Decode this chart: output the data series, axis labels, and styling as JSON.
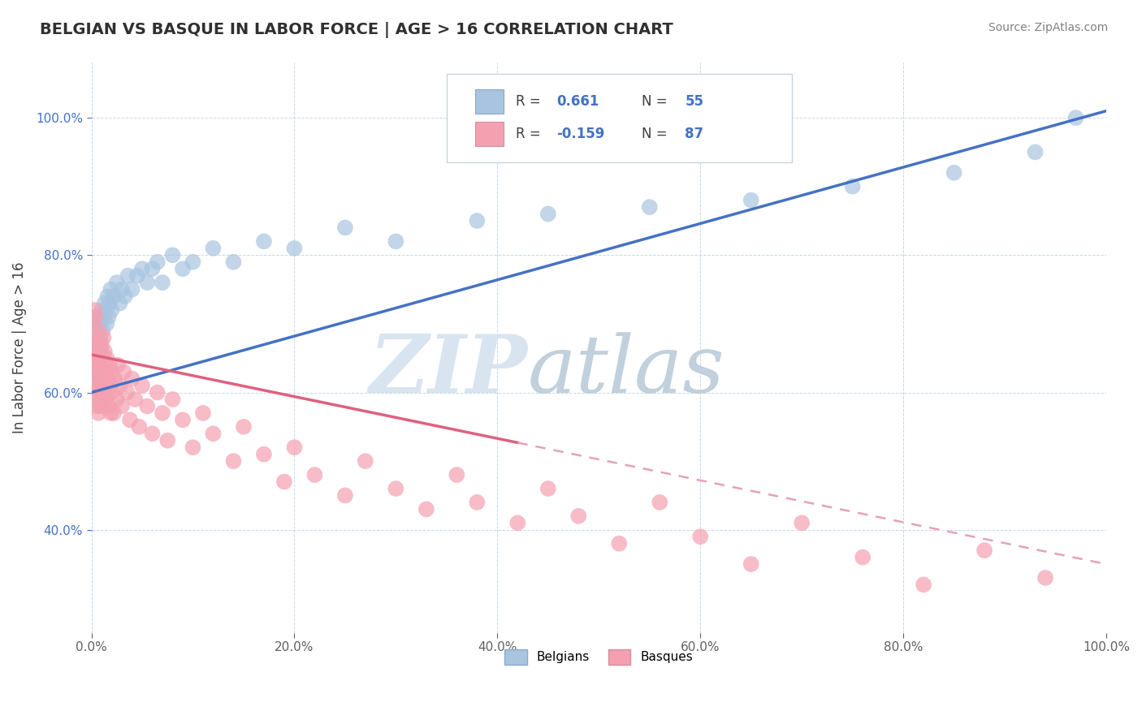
{
  "title": "BELGIAN VS BASQUE IN LABOR FORCE | AGE > 16 CORRELATION CHART",
  "source_text": "Source: ZipAtlas.com",
  "ylabel": "In Labor Force | Age > 16",
  "xlim": [
    0.0,
    1.0
  ],
  "ylim": [
    0.25,
    1.08
  ],
  "x_ticks": [
    0.0,
    0.2,
    0.4,
    0.6,
    0.8,
    1.0
  ],
  "x_tick_labels": [
    "0.0%",
    "20.0%",
    "40.0%",
    "60.0%",
    "80.0%",
    "100.0%"
  ],
  "y_ticks": [
    0.4,
    0.6,
    0.8,
    1.0
  ],
  "y_tick_labels": [
    "40.0%",
    "60.0%",
    "80.0%",
    "100.0%"
  ],
  "belgian_color": "#a8c4e0",
  "basque_color": "#f4a0b0",
  "trendline_belgian_color": "#4472c4",
  "trendline_basque_color": "#e06080",
  "trendline_basque_dashed_color": "#e8a0b8",
  "legend_label_belgians": "Belgians",
  "legend_label_basques": "Basques",
  "belgian_scatter_x": [
    0.001,
    0.002,
    0.003,
    0.004,
    0.004,
    0.005,
    0.005,
    0.006,
    0.006,
    0.007,
    0.007,
    0.008,
    0.009,
    0.01,
    0.01,
    0.011,
    0.012,
    0.013,
    0.014,
    0.015,
    0.016,
    0.017,
    0.018,
    0.019,
    0.02,
    0.022,
    0.025,
    0.028,
    0.03,
    0.033,
    0.036,
    0.04,
    0.045,
    0.05,
    0.055,
    0.06,
    0.065,
    0.07,
    0.08,
    0.09,
    0.1,
    0.12,
    0.14,
    0.17,
    0.2,
    0.25,
    0.3,
    0.38,
    0.45,
    0.55,
    0.65,
    0.75,
    0.85,
    0.93,
    0.97
  ],
  "belgian_scatter_y": [
    0.62,
    0.64,
    0.65,
    0.63,
    0.67,
    0.66,
    0.68,
    0.65,
    0.69,
    0.67,
    0.71,
    0.7,
    0.68,
    0.66,
    0.72,
    0.69,
    0.71,
    0.73,
    0.72,
    0.7,
    0.74,
    0.71,
    0.73,
    0.75,
    0.72,
    0.74,
    0.76,
    0.73,
    0.75,
    0.74,
    0.77,
    0.75,
    0.77,
    0.78,
    0.76,
    0.78,
    0.79,
    0.76,
    0.8,
    0.78,
    0.79,
    0.81,
    0.79,
    0.82,
    0.81,
    0.84,
    0.82,
    0.85,
    0.86,
    0.87,
    0.88,
    0.9,
    0.92,
    0.95,
    1.0
  ],
  "basque_scatter_x": [
    0.001,
    0.001,
    0.002,
    0.002,
    0.003,
    0.003,
    0.003,
    0.004,
    0.004,
    0.004,
    0.005,
    0.005,
    0.005,
    0.006,
    0.006,
    0.007,
    0.007,
    0.007,
    0.008,
    0.008,
    0.009,
    0.009,
    0.01,
    0.01,
    0.011,
    0.011,
    0.012,
    0.012,
    0.013,
    0.013,
    0.014,
    0.015,
    0.015,
    0.016,
    0.017,
    0.018,
    0.018,
    0.019,
    0.02,
    0.021,
    0.022,
    0.023,
    0.025,
    0.026,
    0.028,
    0.03,
    0.032,
    0.035,
    0.038,
    0.04,
    0.043,
    0.047,
    0.05,
    0.055,
    0.06,
    0.065,
    0.07,
    0.075,
    0.08,
    0.09,
    0.1,
    0.11,
    0.12,
    0.14,
    0.15,
    0.17,
    0.19,
    0.2,
    0.22,
    0.25,
    0.27,
    0.3,
    0.33,
    0.36,
    0.38,
    0.42,
    0.45,
    0.48,
    0.52,
    0.56,
    0.6,
    0.65,
    0.7,
    0.76,
    0.82,
    0.88,
    0.94
  ],
  "basque_scatter_y": [
    0.64,
    0.7,
    0.63,
    0.68,
    0.59,
    0.65,
    0.72,
    0.6,
    0.66,
    0.71,
    0.58,
    0.63,
    0.68,
    0.61,
    0.67,
    0.57,
    0.62,
    0.69,
    0.6,
    0.65,
    0.58,
    0.63,
    0.61,
    0.67,
    0.59,
    0.65,
    0.62,
    0.68,
    0.6,
    0.66,
    0.63,
    0.59,
    0.65,
    0.62,
    0.58,
    0.64,
    0.61,
    0.57,
    0.63,
    0.6,
    0.57,
    0.62,
    0.59,
    0.64,
    0.61,
    0.58,
    0.63,
    0.6,
    0.56,
    0.62,
    0.59,
    0.55,
    0.61,
    0.58,
    0.54,
    0.6,
    0.57,
    0.53,
    0.59,
    0.56,
    0.52,
    0.57,
    0.54,
    0.5,
    0.55,
    0.51,
    0.47,
    0.52,
    0.48,
    0.45,
    0.5,
    0.46,
    0.43,
    0.48,
    0.44,
    0.41,
    0.46,
    0.42,
    0.38,
    0.44,
    0.39,
    0.35,
    0.41,
    0.36,
    0.32,
    0.37,
    0.33
  ],
  "background_color": "#ffffff",
  "grid_color": "#c8d8e8",
  "title_color": "#303030",
  "axis_label_color": "#404040",
  "tick_color": "#606060",
  "source_color": "#808080",
  "belgian_trendline_x0": 0.0,
  "belgian_trendline_y0": 0.6,
  "belgian_trendline_x1": 1.0,
  "belgian_trendline_y1": 1.01,
  "basque_trendline_x0": 0.0,
  "basque_trendline_y0": 0.655,
  "basque_trendline_solid_x1": 0.42,
  "basque_trendline_x1": 1.0,
  "basque_trendline_y1": 0.35
}
